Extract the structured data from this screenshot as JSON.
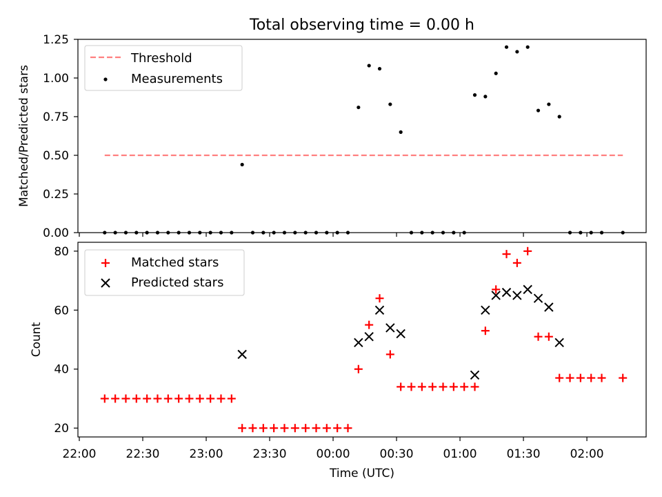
{
  "title": "Total observing time = 0.00 h",
  "xlabel": "Time (UTC)",
  "x_ticks": [
    "22:00",
    "22:30",
    "23:00",
    "23:30",
    "00:00",
    "00:30",
    "01:00",
    "01:30",
    "02:00"
  ],
  "chart_data": [
    {
      "type": "scatter",
      "ylabel": "Matched/Predicted stars",
      "ylim": [
        0,
        1.25
      ],
      "y_ticks": [
        "0.00",
        "0.25",
        "0.50",
        "0.75",
        "1.00",
        "1.25"
      ],
      "legend_position": "top-left",
      "grid": false,
      "threshold": {
        "name": "Threshold",
        "value": 0.5,
        "x_start": "22:12",
        "x_end": "02:17",
        "color": "#ff7f7f"
      },
      "series": [
        {
          "name": "Measurements",
          "marker": "dot",
          "color": "#000000",
          "points": [
            [
              "22:12",
              0
            ],
            [
              "22:17",
              0
            ],
            [
              "22:22",
              0
            ],
            [
              "22:27",
              0
            ],
            [
              "22:32",
              0
            ],
            [
              "22:37",
              0
            ],
            [
              "22:42",
              0
            ],
            [
              "22:47",
              0
            ],
            [
              "22:52",
              0
            ],
            [
              "22:57",
              0
            ],
            [
              "23:02",
              0
            ],
            [
              "23:07",
              0
            ],
            [
              "23:12",
              0
            ],
            [
              "23:17",
              0.44
            ],
            [
              "23:22",
              0
            ],
            [
              "23:27",
              0
            ],
            [
              "23:32",
              0
            ],
            [
              "23:37",
              0
            ],
            [
              "23:42",
              0
            ],
            [
              "23:47",
              0
            ],
            [
              "23:52",
              0
            ],
            [
              "23:57",
              0
            ],
            [
              "00:02",
              0
            ],
            [
              "00:07",
              0
            ],
            [
              "00:12",
              0.81
            ],
            [
              "00:17",
              1.08
            ],
            [
              "00:22",
              1.06
            ],
            [
              "00:27",
              0.83
            ],
            [
              "00:32",
              0.65
            ],
            [
              "00:37",
              0
            ],
            [
              "00:42",
              0
            ],
            [
              "00:47",
              0
            ],
            [
              "00:52",
              0
            ],
            [
              "00:57",
              0
            ],
            [
              "01:02",
              0
            ],
            [
              "01:07",
              0.89
            ],
            [
              "01:12",
              0.88
            ],
            [
              "01:17",
              1.03
            ],
            [
              "01:22",
              1.2
            ],
            [
              "01:27",
              1.17
            ],
            [
              "01:32",
              1.2
            ],
            [
              "01:37",
              0.79
            ],
            [
              "01:42",
              0.83
            ],
            [
              "01:47",
              0.75
            ],
            [
              "01:52",
              0
            ],
            [
              "01:57",
              0
            ],
            [
              "02:02",
              0
            ],
            [
              "02:07",
              0
            ],
            [
              "02:17",
              0
            ]
          ]
        }
      ]
    },
    {
      "type": "scatter",
      "ylabel": "Count",
      "ylim": [
        17,
        83
      ],
      "y_ticks": [
        "20",
        "40",
        "60",
        "80"
      ],
      "legend_position": "top-left",
      "grid": false,
      "series": [
        {
          "name": "Matched stars",
          "marker": "plus",
          "color": "#ff0000",
          "points": [
            [
              "22:12",
              30
            ],
            [
              "22:17",
              30
            ],
            [
              "22:22",
              30
            ],
            [
              "22:27",
              30
            ],
            [
              "22:32",
              30
            ],
            [
              "22:37",
              30
            ],
            [
              "22:42",
              30
            ],
            [
              "22:47",
              30
            ],
            [
              "22:52",
              30
            ],
            [
              "22:57",
              30
            ],
            [
              "23:02",
              30
            ],
            [
              "23:07",
              30
            ],
            [
              "23:12",
              30
            ],
            [
              "23:17",
              20
            ],
            [
              "23:22",
              20
            ],
            [
              "23:27",
              20
            ],
            [
              "23:32",
              20
            ],
            [
              "23:37",
              20
            ],
            [
              "23:42",
              20
            ],
            [
              "23:47",
              20
            ],
            [
              "23:52",
              20
            ],
            [
              "23:57",
              20
            ],
            [
              "00:02",
              20
            ],
            [
              "00:07",
              20
            ],
            [
              "00:12",
              40
            ],
            [
              "00:17",
              55
            ],
            [
              "00:22",
              64
            ],
            [
              "00:27",
              45
            ],
            [
              "00:32",
              34
            ],
            [
              "00:37",
              34
            ],
            [
              "00:42",
              34
            ],
            [
              "00:47",
              34
            ],
            [
              "00:52",
              34
            ],
            [
              "00:57",
              34
            ],
            [
              "01:02",
              34
            ],
            [
              "01:07",
              34
            ],
            [
              "01:12",
              53
            ],
            [
              "01:17",
              67
            ],
            [
              "01:22",
              79
            ],
            [
              "01:27",
              76
            ],
            [
              "01:32",
              80
            ],
            [
              "01:37",
              51
            ],
            [
              "01:42",
              51
            ],
            [
              "01:47",
              37
            ],
            [
              "01:52",
              37
            ],
            [
              "01:57",
              37
            ],
            [
              "02:02",
              37
            ],
            [
              "02:07",
              37
            ],
            [
              "02:17",
              37
            ]
          ]
        },
        {
          "name": "Predicted stars",
          "marker": "x",
          "color": "#000000",
          "points": [
            [
              "23:17",
              45
            ],
            [
              "00:12",
              49
            ],
            [
              "00:17",
              51
            ],
            [
              "00:22",
              60
            ],
            [
              "00:27",
              54
            ],
            [
              "00:32",
              52
            ],
            [
              "01:07",
              38
            ],
            [
              "01:12",
              60
            ],
            [
              "01:17",
              65
            ],
            [
              "01:22",
              66
            ],
            [
              "01:27",
              65
            ],
            [
              "01:32",
              67
            ],
            [
              "01:37",
              64
            ],
            [
              "01:42",
              61
            ],
            [
              "01:47",
              49
            ]
          ]
        }
      ]
    }
  ]
}
